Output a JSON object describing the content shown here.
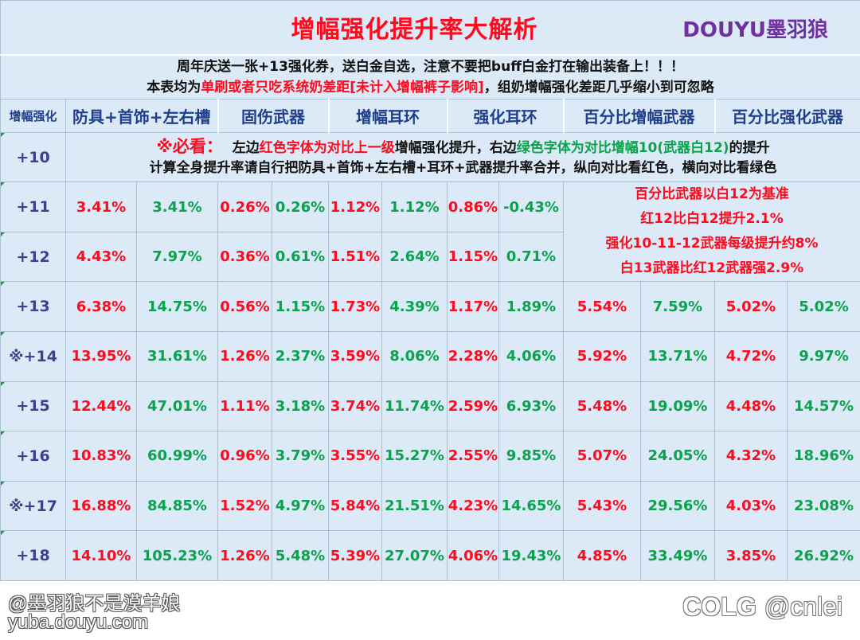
{
  "title": "增幅强化提升率大解析",
  "brand": "DOUYU墨羽狼",
  "notice": {
    "line1": "周年庆送一张+13强化券，送白金自选，注意不要把buff白金打在输出装备上！！！",
    "line2_prefix": "本表均为",
    "line2_red": "单刷或者只吃系统奶差距[未计入增幅裤子影响]",
    "line2_suffix": "，组奶增幅强化差距几乎缩小到可忽略"
  },
  "headers": {
    "level": "增幅强化",
    "armor": "防具+首饰+左右槽",
    "fixed_weapon": "固伤武器",
    "amp_earring": "增幅耳环",
    "refine_earring": "强化耳环",
    "pct_amp_weapon": "百分比增幅武器",
    "pct_refine_weapon": "百分比强化武器"
  },
  "note10": {
    "level": "+10",
    "lead": "※必看：",
    "text_a": "左边",
    "text_red": "红色字体为对比上一级",
    "text_b": "增幅强化提升，右边",
    "text_green": "绿色字体为对比增幅10(武器白12)",
    "text_c": "的提升",
    "line2": "计算全身提升率请自行把防具+首饰+左右槽+耳环+武器提升率合并，纵向对比看红色，横向对比看绿色"
  },
  "pct_note": [
    "百分比武器以白12为基准",
    "红12比白12提升2.1%",
    "强化10-11-12武器每级提升约8%",
    "白13武器比红12武器强2.9%"
  ],
  "rows": [
    {
      "level": "+11",
      "v": [
        "3.41%",
        "3.41%",
        "0.26%",
        "0.26%",
        "1.12%",
        "1.12%",
        "0.86%",
        "-0.43%"
      ]
    },
    {
      "level": "+12",
      "v": [
        "4.43%",
        "7.97%",
        "0.36%",
        "0.61%",
        "1.51%",
        "2.64%",
        "1.15%",
        "0.71%"
      ]
    },
    {
      "level": "+13",
      "v": [
        "6.38%",
        "14.75%",
        "0.56%",
        "1.15%",
        "1.73%",
        "4.39%",
        "1.17%",
        "1.89%",
        "5.54%",
        "7.59%",
        "5.02%",
        "5.02%"
      ]
    },
    {
      "level": "※+14",
      "v": [
        "13.95%",
        "31.61%",
        "1.26%",
        "2.37%",
        "3.59%",
        "8.06%",
        "2.28%",
        "4.06%",
        "5.92%",
        "13.71%",
        "4.72%",
        "9.97%"
      ]
    },
    {
      "level": "+15",
      "v": [
        "12.44%",
        "47.01%",
        "1.11%",
        "3.18%",
        "3.74%",
        "11.74%",
        "2.59%",
        "6.93%",
        "5.48%",
        "19.09%",
        "4.48%",
        "14.57%"
      ]
    },
    {
      "level": "+16",
      "v": [
        "10.83%",
        "60.99%",
        "0.96%",
        "3.79%",
        "3.55%",
        "15.27%",
        "2.55%",
        "9.85%",
        "5.07%",
        "24.05%",
        "4.32%",
        "18.96%"
      ]
    },
    {
      "level": "※+17",
      "v": [
        "16.88%",
        "84.85%",
        "1.52%",
        "4.97%",
        "5.84%",
        "21.51%",
        "4.23%",
        "14.65%",
        "5.43%",
        "29.56%",
        "4.03%",
        "23.08%"
      ]
    },
    {
      "level": "+18",
      "v": [
        "14.10%",
        "105.23%",
        "1.26%",
        "5.48%",
        "5.39%",
        "27.07%",
        "4.06%",
        "19.43%",
        "4.85%",
        "33.49%",
        "3.85%",
        "26.92%"
      ]
    }
  ],
  "watermark_left": {
    "line1": "@墨羽狼不是漠羊娘",
    "line2": "yuba.douyu.com"
  },
  "watermark_right": {
    "logo": "COLG",
    "handle": "@cnlei"
  },
  "colors": {
    "red": "#ff0a1e",
    "green": "#0aa24d",
    "level": "#3d3f8f",
    "header": "#1f3f8c",
    "brand": "#7030a0",
    "background": "#dbeaf6"
  }
}
